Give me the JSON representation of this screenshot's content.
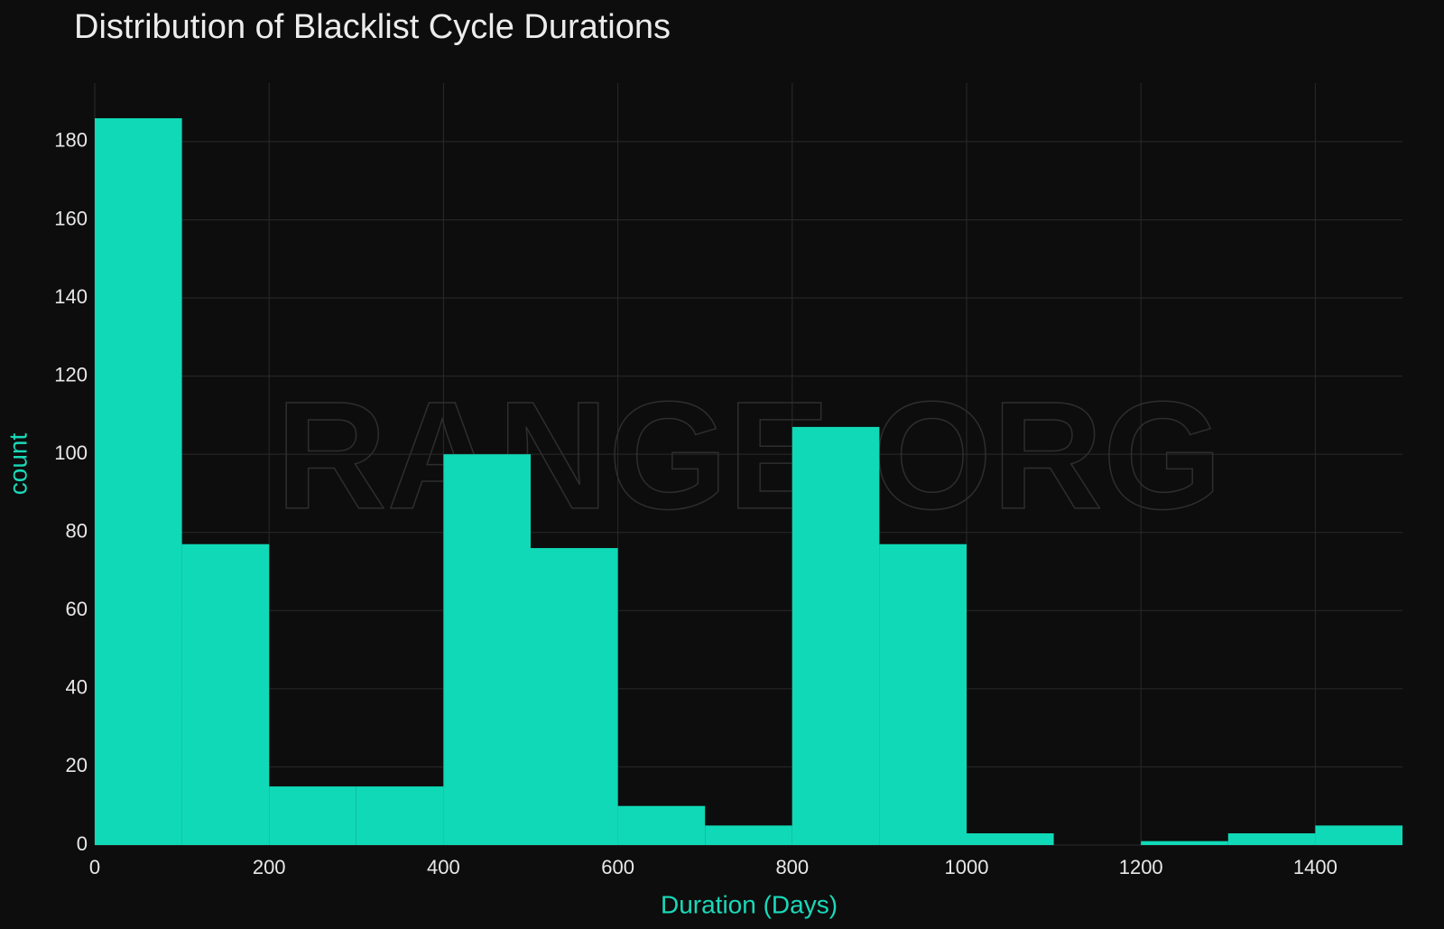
{
  "chart_data": {
    "type": "histogram",
    "title": "Distribution of Blacklist Cycle Durations",
    "x_label": "Duration (Days)",
    "y_label": "count",
    "watermark": "RANGE.ORG",
    "bins": [
      0,
      100,
      200,
      300,
      400,
      500,
      600,
      700,
      800,
      900,
      1000,
      1100,
      1200,
      1300,
      1400,
      1500
    ],
    "values": [
      186,
      77,
      15,
      15,
      100,
      76,
      10,
      5,
      107,
      77,
      3,
      0,
      1,
      3,
      5
    ],
    "color": "#10d9b7",
    "xlim": [
      0,
      1500
    ],
    "xticks": [
      0,
      200,
      400,
      600,
      800,
      1000,
      1200,
      1400
    ],
    "ylim": [
      0,
      195
    ],
    "yticks": [
      0,
      20,
      40,
      60,
      80,
      100,
      120,
      140,
      160,
      180
    ],
    "grid": true
  }
}
